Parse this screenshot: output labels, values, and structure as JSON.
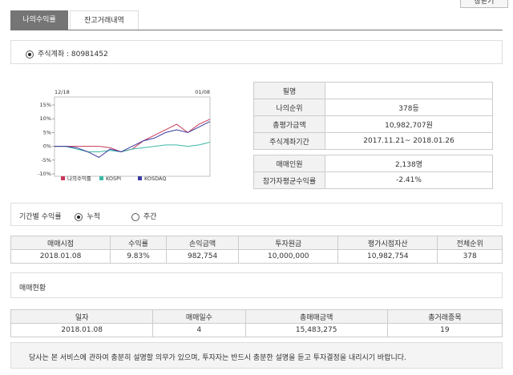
{
  "close_button": "창닫기",
  "tabs": [
    "나의수익률",
    "잔고거래내역"
  ],
  "account": "주식계좌 : 80981452",
  "chart_data": {
    "type": "line",
    "categories": [
      "12/18",
      null,
      null,
      null,
      null,
      null,
      null,
      null,
      null,
      null,
      null,
      null,
      null,
      null,
      "01/08"
    ],
    "series": [
      {
        "name": "나의수익률",
        "color": "#c8385a",
        "values": [
          0,
          0,
          0,
          0,
          0,
          -0.5,
          -2,
          -1,
          2,
          4,
          6,
          8,
          5,
          8,
          9.83
        ]
      },
      {
        "name": "KOSPI",
        "color": "#3cb8a8",
        "values": [
          0,
          0,
          -1,
          -2,
          -2,
          -1.5,
          -2,
          -1,
          -0.5,
          0,
          0.5,
          0.5,
          0,
          0.5,
          1.5
        ]
      },
      {
        "name": "KOSDAQ",
        "color": "#3a3aa0",
        "values": [
          0,
          0,
          -0.5,
          -2,
          -4,
          -1,
          -2,
          0,
          2,
          3,
          5,
          6,
          5,
          7,
          9
        ]
      }
    ],
    "ylim": [
      -10,
      15
    ],
    "yticks": [
      {
        "value": -10,
        "label": "-10%"
      },
      {
        "value": -5,
        "label": "-5%"
      },
      {
        "value": 0,
        "label": "0%"
      },
      {
        "value": 5,
        "label": "5%"
      },
      {
        "value": 10,
        "label": "10%"
      },
      {
        "value": 15,
        "label": "15%"
      }
    ]
  },
  "info": {
    "rows": [
      {
        "label": "필명"
      },
      {
        "label": "나의순위",
        "value": "378등"
      },
      {
        "label": "총평가금액",
        "value": "10,982,707원"
      },
      {
        "label": "주식계좌기간",
        "value": "2017.11.21~ 2018.01.26"
      }
    ]
  },
  "stats": {
    "rows": [
      {
        "label": "매매인원",
        "value": "2,138명"
      },
      {
        "label": "참가자평균수익률",
        "value": "-2.41%"
      }
    ]
  },
  "period": {
    "label": "기간별 수익률",
    "options": [
      "누적",
      "주간"
    ]
  },
  "returns_table": {
    "headers": [
      "매매시점",
      "수익률",
      "손익금액",
      "투자원금",
      "평가시점자산",
      "전체순위"
    ],
    "rows": [
      [
        "2018.01.08",
        "9.83%",
        "982,754",
        "10,000,000",
        "10,982,754",
        "378"
      ]
    ]
  },
  "trade_section": "매매현황",
  "trade_table": {
    "headers": [
      "일자",
      "매매일수",
      "총매매금액",
      "총거래종목"
    ],
    "rows": [
      [
        "2018.01.08",
        "4",
        "15,483,275",
        "19"
      ]
    ]
  },
  "notice": "당사는 본 서비스에 관하여 충분히 설명할 의무가 있으며, 투자자는 반드시 충분한 설명을 듣고 투자결정을 내리시기 바랍니다."
}
